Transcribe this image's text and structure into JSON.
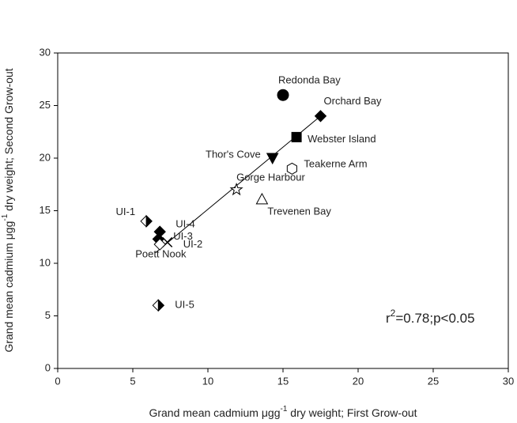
{
  "chart_data": {
    "type": "scatter",
    "labels": [
      "Redonda Bay",
      "Orchard Bay",
      "Webster Island",
      "Thor's Cove",
      "Teakerne Arm",
      "Gorge Harbour",
      "Trevenen Bay",
      "UI-1",
      "UI-4",
      "UI-3",
      "UI-2",
      "Poett Nook",
      "UI-5"
    ],
    "x": [
      15,
      17.5,
      15.9,
      14.3,
      15.6,
      11.9,
      13.6,
      5.9,
      6.8,
      6.7,
      7.3,
      6.8,
      6.7
    ],
    "values": [
      26,
      24,
      22,
      20,
      19,
      17,
      16.1,
      14,
      13,
      12.3,
      12,
      11.8,
      6
    ],
    "markers": [
      "circle",
      "diamond",
      "square",
      "triangle-down",
      "hexagon-open",
      "star-open",
      "triangle-open",
      "half-diamond",
      "diamond",
      "diamond",
      "x",
      "diamond-open",
      "half-diamond"
    ],
    "color": "#000000",
    "regression": {
      "x": [
        6.5,
        17.5
      ],
      "values": [
        11,
        24
      ]
    },
    "xlim": [
      0,
      30
    ],
    "ylim": [
      0,
      30
    ],
    "xticks": [
      0,
      5,
      10,
      15,
      20,
      25,
      30
    ],
    "yticks": [
      0,
      5,
      10,
      15,
      20,
      25,
      30
    ],
    "x_label": {
      "base": "Grand mean cadmium μgg",
      "sup": "-1",
      "rest": " dry weight; First Grow-out"
    },
    "y_label": {
      "base": "Grand mean cadmium μgg",
      "sup": "-1",
      "rest": " dry weight; Second Grow-out"
    },
    "annotation": {
      "base": "r",
      "sup": "2",
      "rest": "=0.78;p<0.05"
    }
  }
}
